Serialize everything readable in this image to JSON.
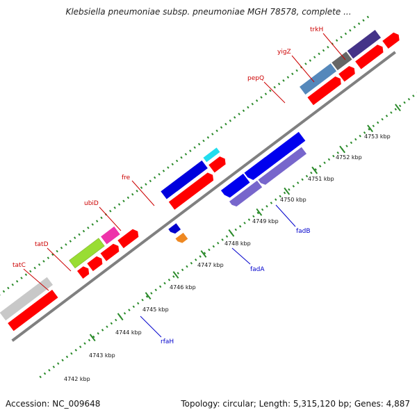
{
  "title": "Klebsiella pneumoniae subsp. pneumoniae MGH 78578, complete ...",
  "footer": {
    "accession": "Accession: NC_009648",
    "topology": "Topology: circular; Length: 5,315,120 bp; Genes: 4,887"
  },
  "colors": {
    "background": "#ffffff",
    "backbone": "#808080",
    "tick_green": "#2a8a2a",
    "red_label": "#cc0000",
    "blue_label": "#0000cc",
    "cds_red": "#ff0000"
  },
  "axis": {
    "ticks": [
      {
        "label": "4742 kbp"
      },
      {
        "label": "4743 kbp"
      },
      {
        "label": "4744 kbp"
      },
      {
        "label": "4745 kbp"
      },
      {
        "label": "4746 kbp"
      },
      {
        "label": "4747 kbp"
      },
      {
        "label": "4748 kbp"
      },
      {
        "label": "4749 kbp"
      },
      {
        "label": "4750 kbp"
      },
      {
        "label": "4751 kbp"
      },
      {
        "label": "4752 kbp"
      },
      {
        "label": "4753 kbp"
      }
    ]
  },
  "genes": [
    {
      "name": "tatC",
      "strand": "forward",
      "color": "#99dd33"
    },
    {
      "name": "tatD",
      "strand": "forward",
      "color": "#ee33aa"
    },
    {
      "name": "ubiD",
      "strand": "forward",
      "color": "#0000dd"
    },
    {
      "name": "fre",
      "strand": "forward",
      "color": "#22ddee"
    },
    {
      "name": "pepQ",
      "strand": "forward",
      "color": "#5588bb"
    },
    {
      "name": "yigZ",
      "strand": "forward",
      "color": "#666666"
    },
    {
      "name": "trkH",
      "strand": "forward",
      "color": "#443388"
    },
    {
      "name": "rfaH",
      "strand": "reverse",
      "color": "#ee8822"
    },
    {
      "name": "fadA",
      "strand": "reverse",
      "color": "#7766cc"
    },
    {
      "name": "fadB",
      "strand": "reverse",
      "color": "#0000ee"
    }
  ]
}
